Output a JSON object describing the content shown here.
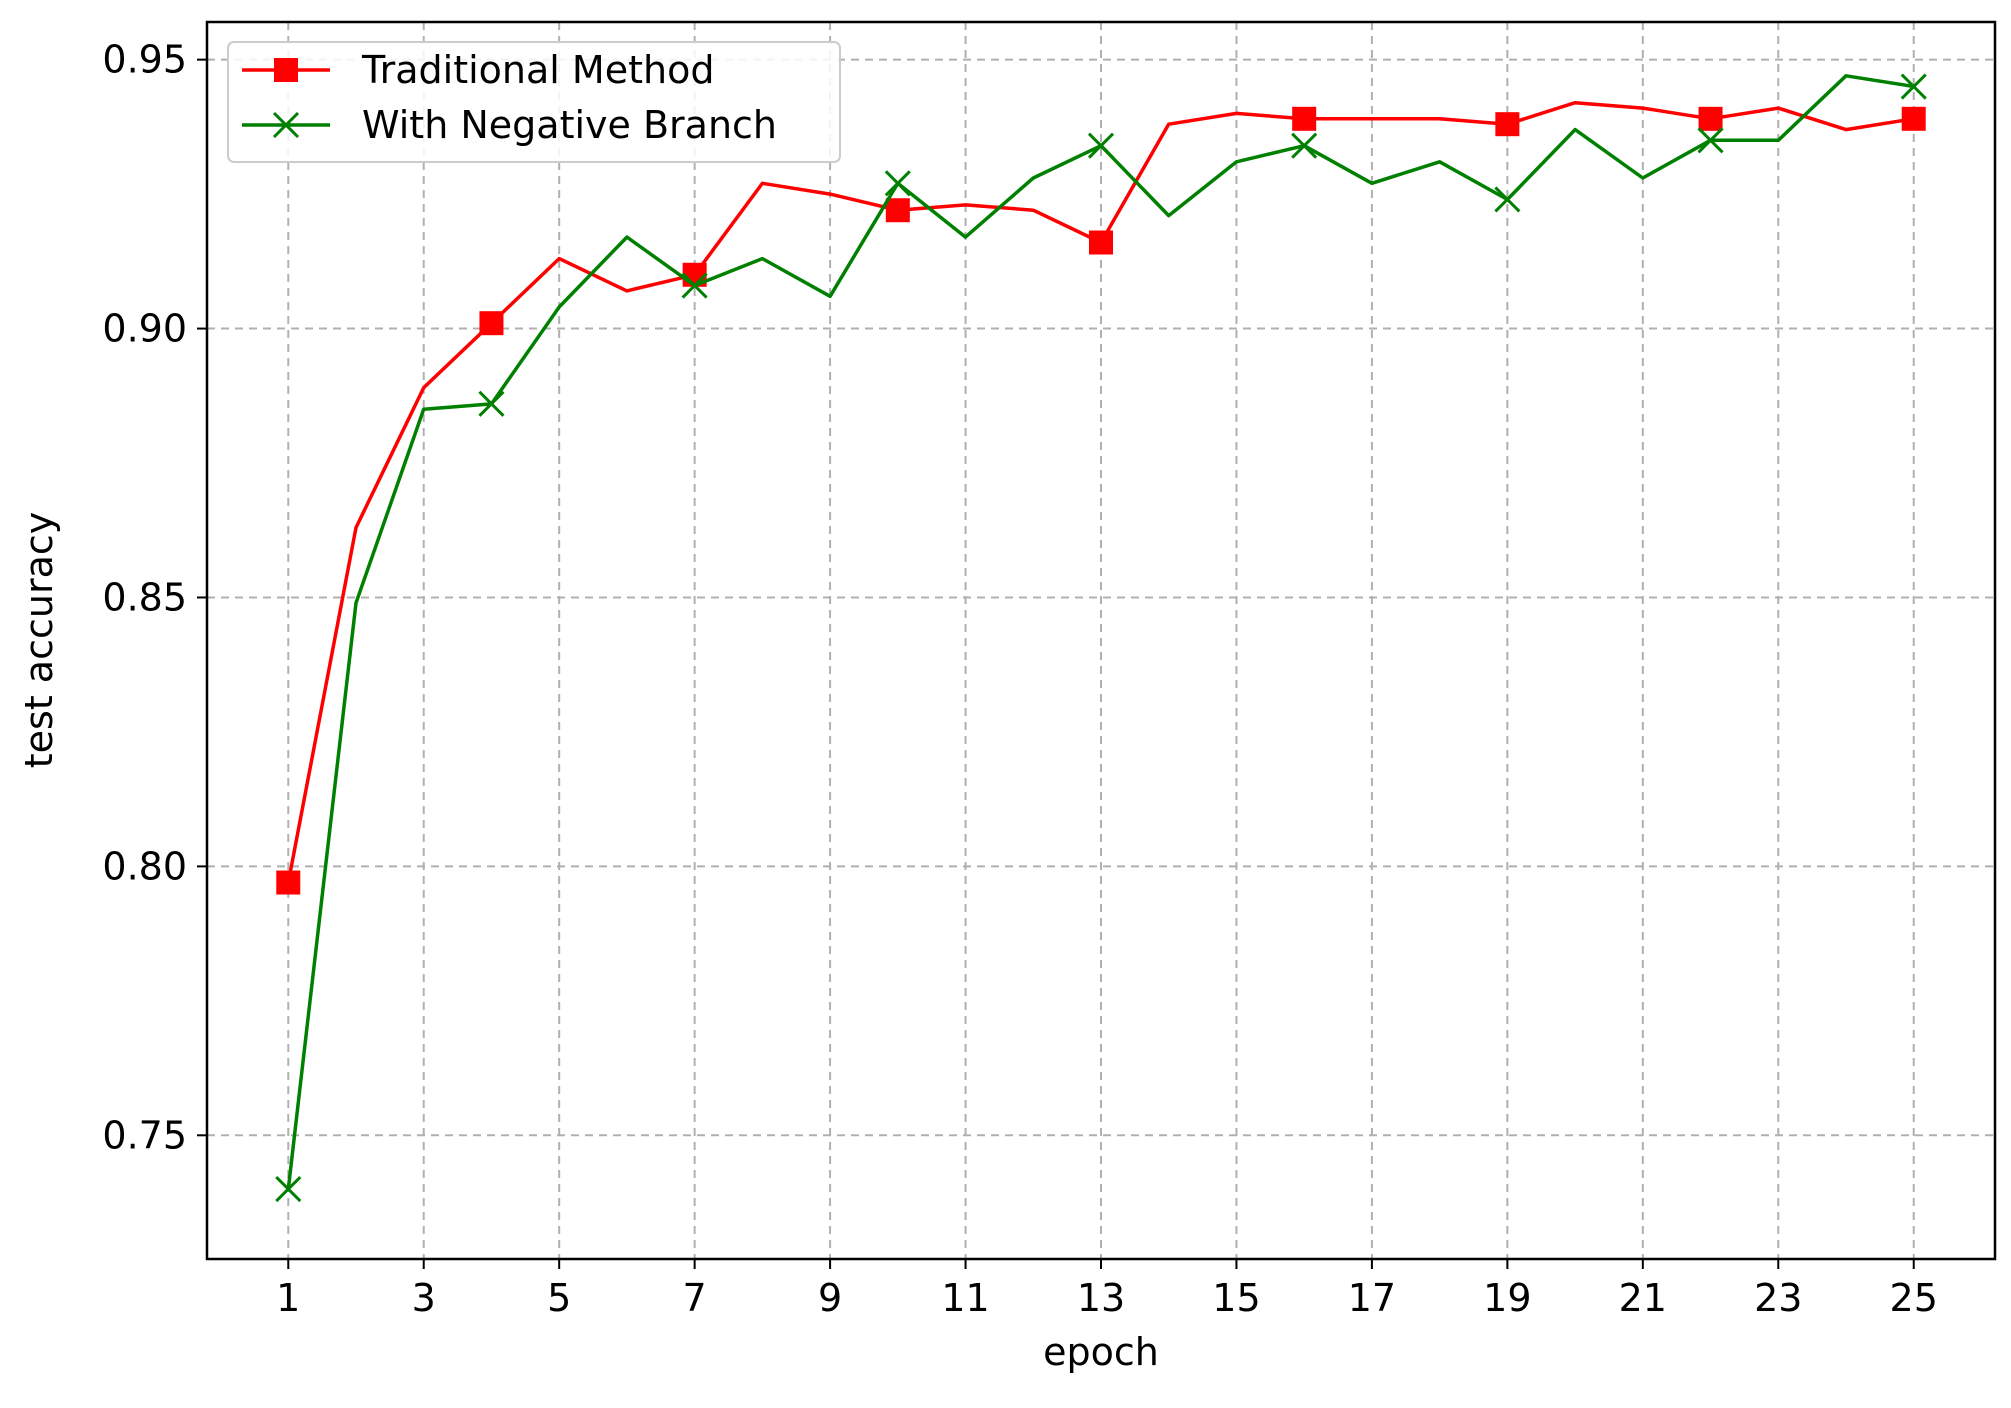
{
  "chart_data": {
    "type": "line",
    "title": "",
    "xlabel": "epoch",
    "ylabel": "test accuracy",
    "xlim": [
      -0.2,
      26.2
    ],
    "ylim": [
      0.727,
      0.957
    ],
    "x_ticks": [
      1,
      3,
      5,
      7,
      9,
      11,
      13,
      15,
      17,
      19,
      21,
      23,
      25
    ],
    "x_tick_labels": [
      "1",
      "3",
      "5",
      "7",
      "9",
      "11",
      "13",
      "15",
      "17",
      "19",
      "21",
      "23",
      "25"
    ],
    "y_ticks": [
      0.75,
      0.8,
      0.85,
      0.9,
      0.95
    ],
    "y_tick_labels": [
      "0.75",
      "0.80",
      "0.85",
      "0.90",
      "0.95"
    ],
    "grid": true,
    "legend_position": "top-left",
    "x": [
      1,
      2,
      3,
      4,
      5,
      6,
      7,
      8,
      9,
      10,
      11,
      12,
      13,
      14,
      15,
      16,
      17,
      18,
      19,
      20,
      21,
      22,
      23,
      24,
      25
    ],
    "series": [
      {
        "name": "Traditional Method",
        "color": "#ff0000",
        "marker": "square",
        "marker_every": 3,
        "values": [
          0.797,
          0.863,
          0.889,
          0.901,
          0.913,
          0.907,
          0.91,
          0.927,
          0.925,
          0.922,
          0.923,
          0.922,
          0.916,
          0.938,
          0.94,
          0.939,
          0.939,
          0.939,
          0.938,
          0.942,
          0.941,
          0.939,
          0.941,
          0.937,
          0.939
        ]
      },
      {
        "name": "With Negative Branch",
        "color": "#008000",
        "marker": "x",
        "marker_every": 3,
        "values": [
          0.74,
          0.849,
          0.885,
          0.886,
          0.904,
          0.917,
          0.908,
          0.913,
          0.906,
          0.927,
          0.917,
          0.928,
          0.934,
          0.921,
          0.931,
          0.934,
          0.927,
          0.931,
          0.924,
          0.937,
          0.928,
          0.935,
          0.935,
          0.947,
          0.945
        ]
      }
    ]
  }
}
